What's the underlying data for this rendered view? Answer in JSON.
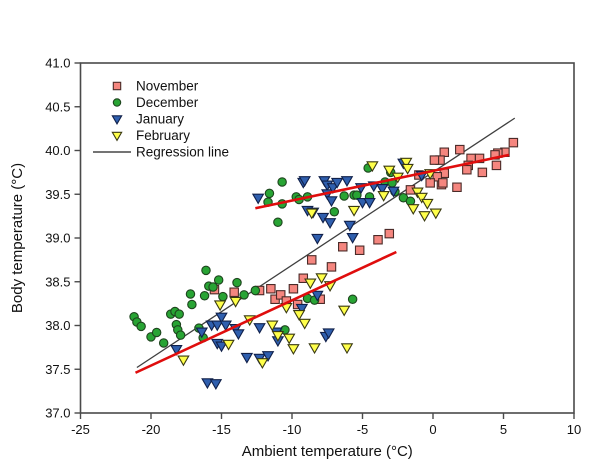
{
  "chart_data": {
    "type": "scatter",
    "title": "",
    "xlabel": "Ambient temperature (°C)",
    "ylabel": "Body temperature (°C)",
    "xlim": [
      -25,
      10
    ],
    "ylim": [
      37.0,
      41.0
    ],
    "grid": false,
    "legend_position": "top-left-inside",
    "xticks": [
      -25,
      -20,
      -15,
      -10,
      -5,
      0,
      5,
      10
    ],
    "xtick_labels": [
      "-25",
      "-20",
      "-15",
      "-10",
      "-5",
      "0",
      "5",
      "10"
    ],
    "yticks": [
      37.0,
      37.5,
      38.0,
      38.5,
      39.0,
      39.5,
      40.0,
      40.5,
      41.0
    ],
    "ytick_labels": [
      "37.0",
      "37.5",
      "38.0",
      "38.5",
      "39.0",
      "39.5",
      "40.0",
      "40.5",
      "41.0"
    ],
    "series": [
      {
        "name": "November",
        "marker": "square",
        "fill": "#f5867f",
        "stroke": "#4a2b28",
        "points": [
          [
            5.7,
            40.09
          ],
          [
            5.1,
            39.98
          ],
          [
            4.6,
            39.97
          ],
          [
            4.4,
            39.95
          ],
          [
            4.5,
            39.83
          ],
          [
            3.5,
            39.75
          ],
          [
            3.3,
            39.91
          ],
          [
            2.7,
            39.91
          ],
          [
            2.5,
            39.83
          ],
          [
            2.4,
            39.78
          ],
          [
            1.9,
            40.01
          ],
          [
            1.7,
            39.58
          ],
          [
            0.8,
            39.98
          ],
          [
            0.8,
            39.74
          ],
          [
            0.6,
            39.61
          ],
          [
            0.5,
            39.89
          ],
          [
            0.3,
            39.7
          ],
          [
            0.1,
            39.89
          ],
          [
            0.7,
            39.63
          ],
          [
            -0.2,
            39.63
          ],
          [
            -1.0,
            39.72
          ],
          [
            -1.6,
            39.55
          ],
          [
            -6.4,
            38.9
          ],
          [
            -5.2,
            38.86
          ],
          [
            -3.9,
            38.98
          ],
          [
            -3.1,
            39.05
          ],
          [
            -8.6,
            38.75
          ],
          [
            -7.2,
            38.67
          ],
          [
            -9.2,
            38.54
          ],
          [
            -12.3,
            38.4
          ],
          [
            -11.5,
            38.42
          ],
          [
            -11.2,
            38.3
          ],
          [
            -10.8,
            38.35
          ],
          [
            -10.4,
            38.28
          ],
          [
            -9.9,
            38.42
          ],
          [
            -9.6,
            38.24
          ],
          [
            -14.1,
            38.38
          ],
          [
            -15.5,
            38.41
          ],
          [
            -8.0,
            38.3
          ]
        ]
      },
      {
        "name": "December",
        "marker": "circle",
        "fill": "#28a434",
        "stroke": "#1e441e",
        "points": [
          [
            -21.2,
            38.1
          ],
          [
            -21.0,
            38.04
          ],
          [
            -20.7,
            37.99
          ],
          [
            -20.0,
            37.87
          ],
          [
            -19.6,
            37.92
          ],
          [
            -19.1,
            37.8
          ],
          [
            -18.6,
            38.13
          ],
          [
            -18.3,
            38.16
          ],
          [
            -18.0,
            38.13
          ],
          [
            -18.2,
            38.01
          ],
          [
            -18.1,
            37.95
          ],
          [
            -17.9,
            37.89
          ],
          [
            -17.2,
            38.36
          ],
          [
            -17.1,
            38.24
          ],
          [
            -16.6,
            37.97
          ],
          [
            -16.3,
            37.86
          ],
          [
            -16.2,
            38.34
          ],
          [
            -16.1,
            38.63
          ],
          [
            -15.9,
            38.45
          ],
          [
            -15.6,
            38.44
          ],
          [
            -15.2,
            38.52
          ],
          [
            -14.9,
            38.33
          ],
          [
            -13.9,
            38.49
          ],
          [
            -13.4,
            38.35
          ],
          [
            -12.6,
            38.4
          ],
          [
            -10.5,
            37.95
          ],
          [
            -8.9,
            38.31
          ],
          [
            -8.4,
            38.29
          ],
          [
            -5.7,
            38.3
          ],
          [
            -11.6,
            39.51
          ],
          [
            -11.7,
            39.41
          ],
          [
            -10.7,
            39.64
          ],
          [
            -10.7,
            39.39
          ],
          [
            -11.0,
            39.18
          ],
          [
            -9.7,
            39.47
          ],
          [
            -8.9,
            39.47
          ],
          [
            -9.5,
            39.44
          ],
          [
            -7.0,
            39.3
          ],
          [
            -6.3,
            39.48
          ],
          [
            -5.6,
            39.49
          ],
          [
            -5.4,
            39.49
          ],
          [
            -4.6,
            39.8
          ],
          [
            -4.5,
            39.47
          ],
          [
            -3.4,
            39.64
          ],
          [
            -3.0,
            39.75
          ],
          [
            -2.9,
            39.63
          ],
          [
            -2.7,
            39.53
          ],
          [
            -2.1,
            39.46
          ],
          [
            -1.6,
            39.42
          ]
        ]
      },
      {
        "name": "January",
        "marker": "triangle-down",
        "fill": "#2f5fae",
        "stroke": "#10204a",
        "points": [
          [
            -12.4,
            39.46
          ],
          [
            -9.2,
            39.64
          ],
          [
            -9.1,
            39.66
          ],
          [
            -8.9,
            39.32
          ],
          [
            -8.5,
            39.3
          ],
          [
            -7.8,
            39.24
          ],
          [
            -7.7,
            39.66
          ],
          [
            -7.5,
            39.61
          ],
          [
            -7.5,
            39.51
          ],
          [
            -7.3,
            39.18
          ],
          [
            -7.2,
            39.43
          ],
          [
            -7.1,
            39.58
          ],
          [
            -6.8,
            39.64
          ],
          [
            -6.1,
            39.66
          ],
          [
            -5.1,
            39.58
          ],
          [
            -5.0,
            39.41
          ],
          [
            -4.5,
            39.41
          ],
          [
            -4.2,
            39.6
          ],
          [
            -3.6,
            39.57
          ],
          [
            -2.8,
            39.54
          ],
          [
            -2.1,
            39.86
          ],
          [
            -0.8,
            39.72
          ],
          [
            -8.2,
            39.0
          ],
          [
            -5.9,
            39.15
          ],
          [
            -5.7,
            39.01
          ],
          [
            -18.2,
            37.73
          ],
          [
            -16.4,
            37.93
          ],
          [
            -16.0,
            37.35
          ],
          [
            -15.7,
            38.01
          ],
          [
            -15.4,
            37.34
          ],
          [
            -15.3,
            38.01
          ],
          [
            -15.3,
            37.8
          ],
          [
            -15.0,
            38.1
          ],
          [
            -15.0,
            37.77
          ],
          [
            -14.7,
            38.01
          ],
          [
            -14.0,
            37.97
          ],
          [
            -13.8,
            37.91
          ],
          [
            -13.2,
            37.64
          ],
          [
            -12.3,
            37.98
          ],
          [
            -12.3,
            37.63
          ],
          [
            -11.7,
            37.66
          ],
          [
            -11.1,
            37.93
          ],
          [
            -11.0,
            37.83
          ],
          [
            -9.3,
            38.2
          ],
          [
            -8.2,
            38.35
          ],
          [
            -7.6,
            37.88
          ],
          [
            -7.4,
            37.92
          ]
        ]
      },
      {
        "name": "February",
        "marker": "triangle-down",
        "fill": "#ffff4a",
        "stroke": "#3a3a12",
        "points": [
          [
            -8.6,
            39.29
          ],
          [
            -5.6,
            39.32
          ],
          [
            -4.3,
            39.83
          ],
          [
            -3.5,
            39.49
          ],
          [
            -3.1,
            39.78
          ],
          [
            -2.5,
            39.7
          ],
          [
            -1.9,
            39.87
          ],
          [
            -1.8,
            39.8
          ],
          [
            -1.4,
            39.34
          ],
          [
            -1.1,
            39.53
          ],
          [
            -0.8,
            39.47
          ],
          [
            -0.6,
            39.26
          ],
          [
            -0.4,
            39.4
          ],
          [
            -0.2,
            39.74
          ],
          [
            0.2,
            39.29
          ],
          [
            -17.7,
            37.61
          ],
          [
            -15.1,
            38.24
          ],
          [
            -14.5,
            37.79
          ],
          [
            -14.0,
            38.28
          ],
          [
            -13.0,
            38.07
          ],
          [
            -12.1,
            37.58
          ],
          [
            -11.4,
            38.01
          ],
          [
            -11.0,
            37.89
          ],
          [
            -10.4,
            38.21
          ],
          [
            -10.2,
            37.86
          ],
          [
            -9.9,
            37.74
          ],
          [
            -9.5,
            38.13
          ],
          [
            -9.1,
            38.03
          ],
          [
            -8.7,
            38.49
          ],
          [
            -8.4,
            37.75
          ],
          [
            -7.9,
            38.55
          ],
          [
            -7.3,
            38.46
          ],
          [
            -6.3,
            38.18
          ],
          [
            -6.1,
            37.75
          ]
        ]
      }
    ],
    "lines": [
      {
        "name": "Regression line",
        "color": "#3f3f3f",
        "width": 1.3,
        "layer": "back",
        "in_legend": true,
        "from": [
          -21.0,
          37.52
        ],
        "to": [
          5.8,
          40.37
        ]
      },
      {
        "name": "lower-cluster-fit",
        "color": "#df0d0d",
        "width": 2.6,
        "layer": "front",
        "in_legend": false,
        "from": [
          -21.1,
          37.46
        ],
        "to": [
          -2.6,
          38.84
        ]
      },
      {
        "name": "upper-cluster-fit",
        "color": "#df0d0d",
        "width": 2.6,
        "layer": "front",
        "in_legend": false,
        "from": [
          -12.6,
          39.34
        ],
        "to": [
          5.4,
          39.95
        ]
      }
    ],
    "axis_color": "#4a4a4a",
    "tick_font_px": 13,
    "label_font_px": 15
  }
}
